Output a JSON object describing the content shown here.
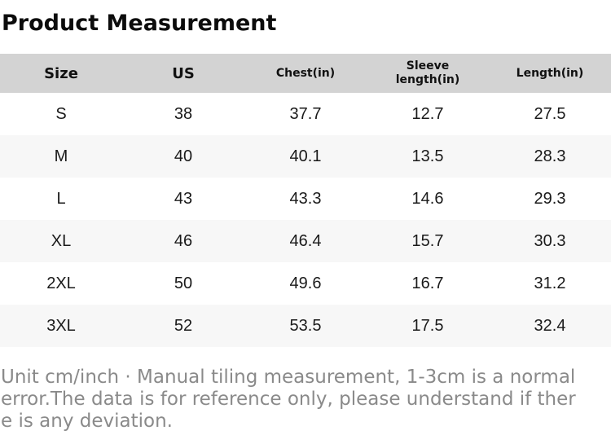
{
  "page": {
    "title": "Product Measurement"
  },
  "colors": {
    "header_bg": "#d3d3d3",
    "row_bg": "#ffffff",
    "row_alt_bg": "#f7f7f7",
    "title_text": "#0c0c0c",
    "body_text": "#1a1a1a",
    "footer_text": "#8a8a8a"
  },
  "table": {
    "headers": [
      "Size",
      "US",
      "Chest(in)",
      "Sleeve length(in)",
      "Length(in)"
    ],
    "rows": [
      {
        "size": "S",
        "us": "38",
        "chest": "37.7",
        "sleeve": "12.7",
        "length": "27.5"
      },
      {
        "size": "M",
        "us": "40",
        "chest": "40.1",
        "sleeve": "13.5",
        "length": "28.3"
      },
      {
        "size": "L",
        "us": "43",
        "chest": "43.3",
        "sleeve": "14.6",
        "length": "29.3"
      },
      {
        "size": "XL",
        "us": "46",
        "chest": "46.4",
        "sleeve": "15.7",
        "length": "30.3"
      },
      {
        "size": "2XL",
        "us": "50",
        "chest": "49.6",
        "sleeve": "16.7",
        "length": "31.2"
      },
      {
        "size": "3XL",
        "us": "52",
        "chest": "53.5",
        "sleeve": "17.5",
        "length": "32.4"
      }
    ]
  },
  "footer": {
    "lines": [
      "Unit cm/inch · Manual tiling measurement, 1-3cm is a normal",
      "error.The data is for reference only, please understand if ther",
      "e is any deviation."
    ]
  }
}
